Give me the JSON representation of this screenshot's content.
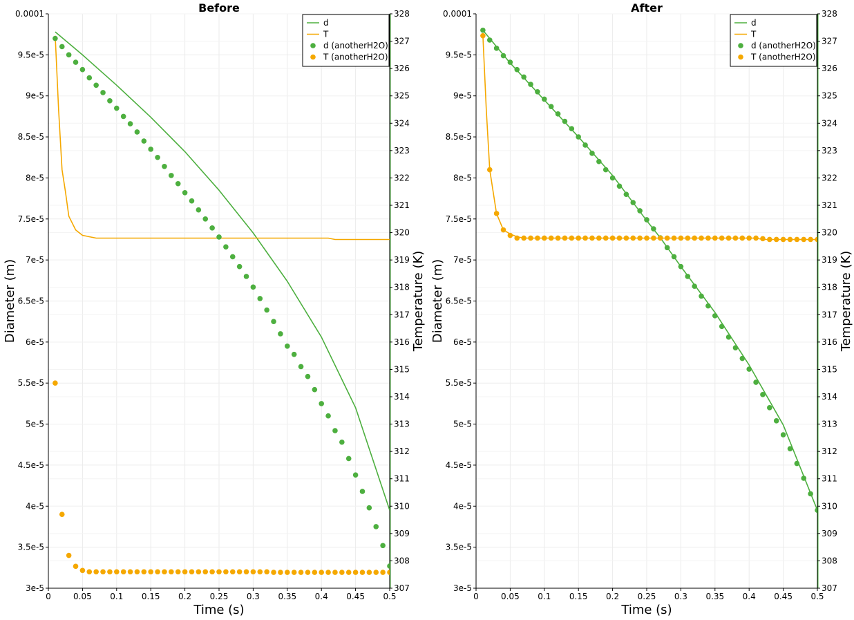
{
  "chart_data": [
    {
      "type": "line",
      "title": "Before",
      "xlabel": "Time (s)",
      "ylabel": "Diameter (m)",
      "y2label": "Temperature (K)",
      "xlim": [
        0,
        0.5
      ],
      "ylim": [
        3e-05,
        0.0001
      ],
      "y2lim": [
        307,
        328
      ],
      "x_ticks": [
        "0",
        "0.05",
        "0.1",
        "0.15",
        "0.2",
        "0.25",
        "0.3",
        "0.35",
        "0.4",
        "0.45",
        "0.5"
      ],
      "y_ticks": [
        "3e-5",
        "3.5e-5",
        "4e-5",
        "4.5e-5",
        "5e-5",
        "5.5e-5",
        "6e-5",
        "6.5e-5",
        "7e-5",
        "7.5e-5",
        "8e-5",
        "8.5e-5",
        "9e-5",
        "9.5e-5",
        "0.0001"
      ],
      "y2_ticks": [
        "307",
        "308",
        "309",
        "310",
        "311",
        "312",
        "313",
        "314",
        "315",
        "316",
        "317",
        "318",
        "319",
        "320",
        "321",
        "322",
        "323",
        "324",
        "325",
        "326",
        "327",
        "328"
      ],
      "grid": true,
      "legend_position": "top-right",
      "series": [
        {
          "name": "d",
          "axis": "left",
          "style": "line",
          "color": "#4daf3f",
          "x": [
            0.01,
            0.05,
            0.1,
            0.15,
            0.2,
            0.25,
            0.3,
            0.35,
            0.4,
            0.45,
            0.5
          ],
          "y": [
            9.78e-05,
            9.5e-05,
            9.13e-05,
            8.74e-05,
            8.32e-05,
            7.85e-05,
            7.33e-05,
            6.74e-05,
            6.06e-05,
            5.2e-05,
            3.95e-05
          ]
        },
        {
          "name": "T",
          "axis": "right",
          "style": "line",
          "color": "#f5a800",
          "x": [
            0.01,
            0.015,
            0.02,
            0.025,
            0.03,
            0.04,
            0.05,
            0.07,
            0.1,
            0.2,
            0.3,
            0.41,
            0.42,
            0.5
          ],
          "y": [
            327.2,
            324.5,
            322.3,
            321.5,
            320.6,
            320.1,
            319.9,
            319.8,
            319.8,
            319.8,
            319.8,
            319.8,
            319.75,
            319.75
          ]
        },
        {
          "name": "d (anotherH2O)",
          "axis": "left",
          "style": "points",
          "color": "#4daf3f",
          "x": [
            0.01,
            0.02,
            0.03,
            0.04,
            0.05,
            0.06,
            0.07,
            0.08,
            0.09,
            0.1,
            0.11,
            0.12,
            0.13,
            0.14,
            0.15,
            0.16,
            0.17,
            0.18,
            0.19,
            0.2,
            0.21,
            0.22,
            0.23,
            0.24,
            0.25,
            0.26,
            0.27,
            0.28,
            0.29,
            0.3,
            0.31,
            0.32,
            0.33,
            0.34,
            0.35,
            0.36,
            0.37,
            0.38,
            0.39,
            0.4,
            0.41,
            0.42,
            0.43,
            0.44,
            0.45,
            0.46,
            0.47,
            0.48,
            0.49,
            0.5
          ],
          "y": [
            9.7e-05,
            9.6e-05,
            9.5e-05,
            9.41e-05,
            9.32e-05,
            9.22e-05,
            9.13e-05,
            9.04e-05,
            8.94e-05,
            8.85e-05,
            8.75e-05,
            8.66e-05,
            8.56e-05,
            8.45e-05,
            8.35e-05,
            8.25e-05,
            8.14e-05,
            8.03e-05,
            7.93e-05,
            7.82e-05,
            7.72e-05,
            7.61e-05,
            7.5e-05,
            7.39e-05,
            7.28e-05,
            7.16e-05,
            7.04e-05,
            6.92e-05,
            6.8e-05,
            6.67e-05,
            6.53e-05,
            6.39e-05,
            6.25e-05,
            6.1e-05,
            5.95e-05,
            5.85e-05,
            5.7e-05,
            5.58e-05,
            5.42e-05,
            5.25e-05,
            5.1e-05,
            4.92e-05,
            4.78e-05,
            4.58e-05,
            4.38e-05,
            4.18e-05,
            3.98e-05,
            3.75e-05,
            3.52e-05,
            3.27e-05
          ]
        },
        {
          "name": "T (anotherH2O)",
          "axis": "right",
          "style": "points",
          "color": "#f5a800",
          "x": [
            0.01,
            0.02,
            0.03,
            0.04,
            0.05,
            0.06,
            0.07,
            0.08,
            0.09,
            0.1,
            0.11,
            0.12,
            0.13,
            0.14,
            0.15,
            0.16,
            0.17,
            0.18,
            0.19,
            0.2,
            0.21,
            0.22,
            0.23,
            0.24,
            0.25,
            0.26,
            0.27,
            0.28,
            0.29,
            0.3,
            0.31,
            0.32,
            0.33,
            0.34,
            0.35,
            0.36,
            0.37,
            0.38,
            0.39,
            0.4,
            0.41,
            0.42,
            0.43,
            0.44,
            0.45,
            0.46,
            0.47,
            0.48,
            0.49,
            0.5
          ],
          "y": [
            314.5,
            309.7,
            308.2,
            307.8,
            307.65,
            307.6,
            307.6,
            307.6,
            307.6,
            307.6,
            307.6,
            307.6,
            307.6,
            307.6,
            307.6,
            307.6,
            307.6,
            307.6,
            307.6,
            307.6,
            307.6,
            307.6,
            307.6,
            307.6,
            307.6,
            307.6,
            307.6,
            307.6,
            307.6,
            307.6,
            307.6,
            307.6,
            307.58,
            307.58,
            307.58,
            307.58,
            307.58,
            307.58,
            307.58,
            307.58,
            307.58,
            307.58,
            307.58,
            307.58,
            307.58,
            307.58,
            307.58,
            307.58,
            307.58,
            307.58
          ]
        }
      ]
    },
    {
      "type": "line",
      "title": "After",
      "xlabel": "Time (s)",
      "ylabel": "Diameter (m)",
      "y2label": "Temperature (K)",
      "xlim": [
        0,
        0.5
      ],
      "ylim": [
        3e-05,
        0.0001
      ],
      "y2lim": [
        307,
        328
      ],
      "x_ticks": [
        "0",
        "0.05",
        "0.1",
        "0.15",
        "0.2",
        "0.25",
        "0.3",
        "0.35",
        "0.4",
        "0.45",
        "0.5"
      ],
      "y_ticks": [
        "3e-5",
        "3.5e-5",
        "4e-5",
        "4.5e-5",
        "5e-5",
        "5.5e-5",
        "6e-5",
        "6.5e-5",
        "7e-5",
        "7.5e-5",
        "8e-5",
        "8.5e-5",
        "9e-5",
        "9.5e-5",
        "0.0001"
      ],
      "y2_ticks": [
        "307",
        "308",
        "309",
        "310",
        "311",
        "312",
        "313",
        "314",
        "315",
        "316",
        "317",
        "318",
        "319",
        "320",
        "321",
        "322",
        "323",
        "324",
        "325",
        "326",
        "327",
        "328"
      ],
      "grid": true,
      "legend_position": "top-right",
      "series": [
        {
          "name": "d",
          "axis": "left",
          "style": "line",
          "color": "#4daf3f",
          "x": [
            0.01,
            0.05,
            0.1,
            0.15,
            0.2,
            0.25,
            0.27,
            0.3,
            0.35,
            0.4,
            0.45,
            0.5
          ],
          "y": [
            9.8e-05,
            9.4e-05,
            8.95e-05,
            8.5e-05,
            8.03e-05,
            7.48e-05,
            7.27e-05,
            6.92e-05,
            6.36e-05,
            5.72e-05,
            4.99e-05,
            3.95e-05
          ]
        },
        {
          "name": "T",
          "axis": "right",
          "style": "line",
          "color": "#f5a800",
          "x": [
            0.01,
            0.015,
            0.02,
            0.025,
            0.03,
            0.04,
            0.05,
            0.06,
            0.07,
            0.1,
            0.3,
            0.41,
            0.42,
            0.5
          ],
          "y": [
            327.2,
            324.5,
            322.3,
            321.5,
            320.7,
            320.1,
            319.95,
            319.85,
            319.8,
            319.8,
            319.8,
            319.8,
            319.75,
            319.75
          ]
        },
        {
          "name": "d (anotherH2O)",
          "axis": "left",
          "style": "points",
          "color": "#4daf3f",
          "x": [
            0.01,
            0.02,
            0.03,
            0.04,
            0.05,
            0.06,
            0.07,
            0.08,
            0.09,
            0.1,
            0.11,
            0.12,
            0.13,
            0.14,
            0.15,
            0.16,
            0.17,
            0.18,
            0.19,
            0.2,
            0.21,
            0.22,
            0.23,
            0.24,
            0.25,
            0.26,
            0.27,
            0.28,
            0.29,
            0.3,
            0.31,
            0.32,
            0.33,
            0.34,
            0.35,
            0.36,
            0.37,
            0.38,
            0.39,
            0.4,
            0.41,
            0.42,
            0.43,
            0.44,
            0.45,
            0.46,
            0.47,
            0.48,
            0.49,
            0.5
          ],
          "y": [
            9.8e-05,
            9.68e-05,
            9.58e-05,
            9.49e-05,
            9.41e-05,
            9.32e-05,
            9.23e-05,
            9.14e-05,
            9.05e-05,
            8.96e-05,
            8.87e-05,
            8.78e-05,
            8.69e-05,
            8.6e-05,
            8.5e-05,
            8.4e-05,
            8.3e-05,
            8.2e-05,
            8.1e-05,
            8e-05,
            7.9e-05,
            7.8e-05,
            7.7e-05,
            7.6e-05,
            7.49e-05,
            7.38e-05,
            7.27e-05,
            7.15e-05,
            7.04e-05,
            6.92e-05,
            6.8e-05,
            6.68e-05,
            6.56e-05,
            6.44e-05,
            6.32e-05,
            6.19e-05,
            6.06e-05,
            5.93e-05,
            5.8e-05,
            5.67e-05,
            5.51e-05,
            5.36e-05,
            5.2e-05,
            5.04e-05,
            4.87e-05,
            4.7e-05,
            4.52e-05,
            4.34e-05,
            4.15e-05,
            3.95e-05
          ]
        },
        {
          "name": "T (anotherH2O)",
          "axis": "right",
          "style": "points",
          "color": "#f5a800",
          "x": [
            0.01,
            0.02,
            0.03,
            0.04,
            0.05,
            0.06,
            0.07,
            0.08,
            0.09,
            0.1,
            0.11,
            0.12,
            0.13,
            0.14,
            0.15,
            0.16,
            0.17,
            0.18,
            0.19,
            0.2,
            0.21,
            0.22,
            0.23,
            0.24,
            0.25,
            0.26,
            0.27,
            0.28,
            0.29,
            0.3,
            0.31,
            0.32,
            0.33,
            0.34,
            0.35,
            0.36,
            0.37,
            0.38,
            0.39,
            0.4,
            0.41,
            0.42,
            0.43,
            0.44,
            0.45,
            0.46,
            0.47,
            0.48,
            0.49,
            0.5
          ],
          "y": [
            327.2,
            322.3,
            320.7,
            320.1,
            319.9,
            319.8,
            319.8,
            319.8,
            319.8,
            319.8,
            319.8,
            319.8,
            319.8,
            319.8,
            319.8,
            319.8,
            319.8,
            319.8,
            319.8,
            319.8,
            319.8,
            319.8,
            319.8,
            319.8,
            319.8,
            319.8,
            319.8,
            319.8,
            319.8,
            319.8,
            319.8,
            319.8,
            319.8,
            319.8,
            319.8,
            319.8,
            319.8,
            319.8,
            319.8,
            319.8,
            319.8,
            319.78,
            319.75,
            319.75,
            319.75,
            319.75,
            319.75,
            319.75,
            319.75,
            319.75
          ]
        }
      ]
    }
  ]
}
